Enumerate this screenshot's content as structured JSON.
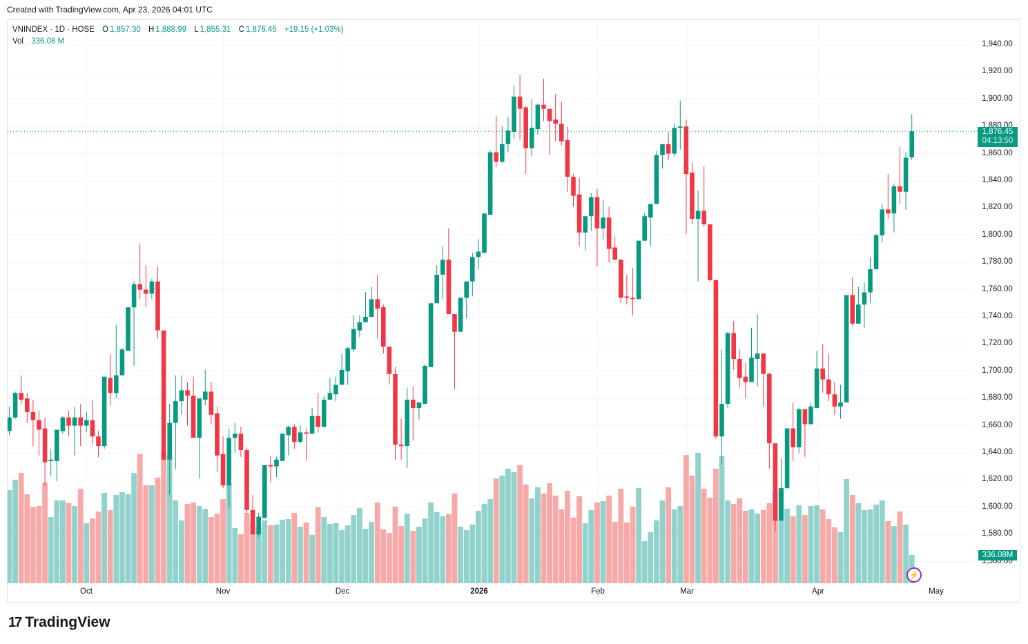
{
  "created_text": "Created with TradingView.com, Apr 23, 2026 04:01 UTC",
  "legend": {
    "symbol": "VNINDEX · 1D · HOSE",
    "o_label": "O",
    "o": "1,857.30",
    "h_label": "H",
    "h": "1,888.99",
    "l_label": "L",
    "l": "1,855.31",
    "c_label": "C",
    "c": "1,876.45",
    "change": "+19.15 (+1.03%)",
    "vol_label": "Vol",
    "vol": "336.08 M"
  },
  "price_tag": {
    "price": "1,876.45",
    "countdown": "04:13:50"
  },
  "volume_tag": "336.08M",
  "logo_text": "TradingView",
  "colors": {
    "up": "#089981",
    "down": "#f23645",
    "vol_up": "#92d2cc",
    "vol_down": "#f7a9a7",
    "grid": "#f0f3fa"
  },
  "chart_data": {
    "type": "candlestick",
    "title": "VNINDEX · 1D · HOSE",
    "ylabel": "Price",
    "ylim": [
      1555,
      1950
    ],
    "grid": true,
    "price_ticks": [
      "1,560.00",
      "1,580.00",
      "1,600.00",
      "1,620.00",
      "1,640.00",
      "1,660.00",
      "1,680.00",
      "1,700.00",
      "1,720.00",
      "1,740.00",
      "1,760.00",
      "1,780.00",
      "1,800.00",
      "1,820.00",
      "1,840.00",
      "1,860.00",
      "1,880.00",
      "1,900.00",
      "1,920.00",
      "1,940.00"
    ],
    "time_ticks": [
      "Oct",
      "Nov",
      "Dec",
      "2026",
      "Feb",
      "Mar",
      "Apr",
      "May"
    ],
    "fields": [
      "open",
      "high",
      "low",
      "close",
      "volume_millions"
    ],
    "candles": [
      [
        1656,
        1674,
        1653,
        1666,
        1106
      ],
      [
        1666,
        1685,
        1665,
        1684,
        1229
      ],
      [
        1684,
        1697,
        1675,
        1679,
        1311
      ],
      [
        1680,
        1684,
        1662,
        1670,
        1057
      ],
      [
        1670,
        1679,
        1645,
        1664,
        902
      ],
      [
        1664,
        1671,
        1638,
        1657,
        918
      ],
      [
        1658,
        1666,
        1616,
        1633,
        1197
      ],
      [
        1634,
        1643,
        1623,
        1635,
        787
      ],
      [
        1634,
        1657,
        1619,
        1657,
        984
      ],
      [
        1656,
        1667,
        1654,
        1666,
        984
      ],
      [
        1666,
        1671,
        1652,
        1660,
        951
      ],
      [
        1660,
        1674,
        1638,
        1666,
        918
      ],
      [
        1666,
        1676,
        1645,
        1660,
        1123
      ],
      [
        1660,
        1670,
        1655,
        1664,
        713
      ],
      [
        1664,
        1679,
        1646,
        1652,
        770
      ],
      [
        1652,
        1656,
        1637,
        1645,
        852
      ],
      [
        1645,
        1696,
        1643,
        1696,
        1074
      ],
      [
        1695,
        1713,
        1675,
        1684,
        869
      ],
      [
        1684,
        1734,
        1680,
        1697,
        1049
      ],
      [
        1697,
        1717,
        1697,
        1716,
        1082
      ],
      [
        1715,
        1747,
        1715,
        1747,
        1057
      ],
      [
        1747,
        1766,
        1704,
        1764,
        1311
      ],
      [
        1764,
        1794,
        1753,
        1760,
        1533
      ],
      [
        1760,
        1778,
        1747,
        1757,
        1164
      ],
      [
        1757,
        1768,
        1753,
        1766,
        1164
      ],
      [
        1766,
        1777,
        1724,
        1730,
        1254
      ],
      [
        1730,
        1730,
        1634,
        1635,
        1557
      ],
      [
        1635,
        1676,
        1609,
        1662,
        1516
      ],
      [
        1662,
        1697,
        1628,
        1678,
        984
      ],
      [
        1678,
        1697,
        1668,
        1686,
        746
      ],
      [
        1686,
        1692,
        1660,
        1682,
        943
      ],
      [
        1682,
        1696,
        1651,
        1651,
        959
      ],
      [
        1651,
        1680,
        1621,
        1680,
        918
      ],
      [
        1679,
        1701,
        1675,
        1685,
        885
      ],
      [
        1685,
        1692,
        1661,
        1668,
        787
      ],
      [
        1669,
        1674,
        1626,
        1638,
        828
      ],
      [
        1639,
        1652,
        1614,
        1616,
        1000
      ],
      [
        1616,
        1658,
        1600,
        1651,
        1188
      ],
      [
        1651,
        1662,
        1640,
        1654,
        656
      ],
      [
        1654,
        1659,
        1637,
        1642,
        582
      ],
      [
        1642,
        1644,
        1595,
        1598,
        836
      ],
      [
        1598,
        1609,
        1580,
        1580,
        729
      ],
      [
        1580,
        1596,
        1578,
        1593,
        656
      ],
      [
        1592,
        1631,
        1592,
        1631,
        746
      ],
      [
        1631,
        1638,
        1618,
        1630,
        688
      ],
      [
        1630,
        1637,
        1622,
        1635,
        697
      ],
      [
        1634,
        1654,
        1634,
        1654,
        754
      ],
      [
        1653,
        1660,
        1638,
        1659,
        762
      ],
      [
        1659,
        1661,
        1643,
        1648,
        836
      ],
      [
        1648,
        1660,
        1647,
        1655,
        672
      ],
      [
        1655,
        1658,
        1634,
        1654,
        721
      ],
      [
        1654,
        1673,
        1654,
        1667,
        574
      ],
      [
        1667,
        1684,
        1655,
        1659,
        902
      ],
      [
        1659,
        1682,
        1659,
        1679,
        787
      ],
      [
        1679,
        1695,
        1679,
        1684,
        705
      ],
      [
        1683,
        1696,
        1678,
        1690,
        713
      ],
      [
        1690,
        1713,
        1690,
        1701,
        631
      ],
      [
        1700,
        1718,
        1690,
        1717,
        688
      ],
      [
        1716,
        1741,
        1714,
        1731,
        811
      ],
      [
        1730,
        1741,
        1725,
        1736,
        893
      ],
      [
        1736,
        1758,
        1736,
        1740,
        647
      ],
      [
        1740,
        1762,
        1740,
        1753,
        729
      ],
      [
        1753,
        1771,
        1724,
        1746,
        959
      ],
      [
        1747,
        1749,
        1713,
        1718,
        639
      ],
      [
        1718,
        1718,
        1690,
        1698,
        598
      ],
      [
        1698,
        1703,
        1635,
        1646,
        910
      ],
      [
        1646,
        1665,
        1635,
        1645,
        680
      ],
      [
        1645,
        1688,
        1629,
        1679,
        828
      ],
      [
        1679,
        1689,
        1649,
        1673,
        623
      ],
      [
        1673,
        1677,
        1664,
        1677,
        672
      ],
      [
        1676,
        1705,
        1676,
        1704,
        770
      ],
      [
        1703,
        1750,
        1703,
        1750,
        959
      ],
      [
        1750,
        1778,
        1750,
        1771,
        844
      ],
      [
        1771,
        1792,
        1753,
        1782,
        795
      ],
      [
        1782,
        1805,
        1742,
        1742,
        820
      ],
      [
        1742,
        1742,
        1687,
        1729,
        1065
      ],
      [
        1729,
        1754,
        1729,
        1754,
        672
      ],
      [
        1754,
        1766,
        1739,
        1766,
        631
      ],
      [
        1766,
        1787,
        1755,
        1784,
        697
      ],
      [
        1784,
        1797,
        1775,
        1788,
        861
      ],
      [
        1787,
        1816,
        1787,
        1816,
        943
      ],
      [
        1815,
        1862,
        1815,
        1861,
        1000
      ],
      [
        1861,
        1888,
        1850,
        1854,
        1246
      ],
      [
        1854,
        1880,
        1853,
        1867,
        1279
      ],
      [
        1867,
        1887,
        1861,
        1877,
        1361
      ],
      [
        1876,
        1910,
        1871,
        1902,
        1320
      ],
      [
        1902,
        1918,
        1870,
        1893,
        1402
      ],
      [
        1894,
        1895,
        1845,
        1864,
        1172
      ],
      [
        1864,
        1900,
        1858,
        1879,
        1008
      ],
      [
        1878,
        1897,
        1874,
        1896,
        1139
      ],
      [
        1896,
        1915,
        1884,
        1893,
        1065
      ],
      [
        1893,
        1893,
        1859,
        1884,
        1188
      ],
      [
        1885,
        1904,
        1869,
        1882,
        1041
      ],
      [
        1882,
        1898,
        1866,
        1869,
        877
      ],
      [
        1870,
        1880,
        1832,
        1843,
        1098
      ],
      [
        1843,
        1845,
        1821,
        1829,
        779
      ],
      [
        1830,
        1842,
        1792,
        1802,
        1033
      ],
      [
        1802,
        1814,
        1789,
        1814,
        713
      ],
      [
        1814,
        1831,
        1803,
        1828,
        869
      ],
      [
        1828,
        1834,
        1777,
        1805,
        959
      ],
      [
        1805,
        1826,
        1797,
        1813,
        975
      ],
      [
        1813,
        1821,
        1780,
        1790,
        1041
      ],
      [
        1791,
        1799,
        1782,
        1782,
        729
      ],
      [
        1782,
        1782,
        1750,
        1754,
        1123
      ],
      [
        1755,
        1771,
        1749,
        1754,
        721
      ],
      [
        1754,
        1776,
        1741,
        1753,
        910
      ],
      [
        1753,
        1796,
        1753,
        1796,
        1131
      ],
      [
        1796,
        1816,
        1796,
        1814,
        500
      ],
      [
        1813,
        1823,
        1792,
        1823,
        607
      ],
      [
        1823,
        1862,
        1823,
        1859,
        746
      ],
      [
        1859,
        1867,
        1849,
        1867,
        984
      ],
      [
        1867,
        1876,
        1855,
        1860,
        1139
      ],
      [
        1860,
        1882,
        1858,
        1879,
        877
      ],
      [
        1879,
        1899,
        1863,
        1880,
        918
      ],
      [
        1880,
        1885,
        1801,
        1845,
        1524
      ],
      [
        1846,
        1854,
        1808,
        1812,
        1279
      ],
      [
        1812,
        1833,
        1766,
        1818,
        1549
      ],
      [
        1818,
        1851,
        1806,
        1808,
        1123
      ],
      [
        1808,
        1808,
        1766,
        1767,
        1016
      ],
      [
        1767,
        1767,
        1650,
        1652,
        1361
      ],
      [
        1652,
        1716,
        1631,
        1676,
        1508
      ],
      [
        1676,
        1729,
        1673,
        1728,
        984
      ],
      [
        1728,
        1737,
        1701,
        1709,
        943
      ],
      [
        1709,
        1716,
        1688,
        1695,
        1008
      ],
      [
        1696,
        1706,
        1680,
        1692,
        861
      ],
      [
        1692,
        1732,
        1692,
        1710,
        877
      ],
      [
        1709,
        1742,
        1689,
        1713,
        828
      ],
      [
        1713,
        1713,
        1674,
        1698,
        869
      ],
      [
        1698,
        1699,
        1628,
        1647,
        951
      ],
      [
        1647,
        1647,
        1582,
        1590,
        1082
      ],
      [
        1590,
        1636,
        1590,
        1614,
        1131
      ],
      [
        1614,
        1658,
        1614,
        1658,
        885
      ],
      [
        1658,
        1677,
        1634,
        1644,
        795
      ],
      [
        1644,
        1673,
        1640,
        1672,
        926
      ],
      [
        1672,
        1672,
        1637,
        1661,
        811
      ],
      [
        1661,
        1677,
        1661,
        1674,
        918
      ],
      [
        1673,
        1715,
        1673,
        1702,
        926
      ],
      [
        1702,
        1720,
        1684,
        1694,
        877
      ],
      [
        1694,
        1713,
        1678,
        1683,
        762
      ],
      [
        1683,
        1692,
        1668,
        1674,
        664
      ],
      [
        1674,
        1690,
        1665,
        1677,
        607
      ],
      [
        1677,
        1756,
        1677,
        1756,
        1238
      ],
      [
        1756,
        1769,
        1733,
        1735,
        1049
      ],
      [
        1735,
        1762,
        1735,
        1749,
        951
      ],
      [
        1749,
        1765,
        1732,
        1758,
        869
      ],
      [
        1758,
        1784,
        1750,
        1775,
        877
      ],
      [
        1775,
        1801,
        1775,
        1800,
        934
      ],
      [
        1800,
        1823,
        1795,
        1819,
        984
      ],
      [
        1819,
        1845,
        1812,
        1816,
        738
      ],
      [
        1816,
        1838,
        1802,
        1836,
        680
      ],
      [
        1836,
        1865,
        1823,
        1832,
        852
      ],
      [
        1832,
        1861,
        1819,
        1857,
        697
      ],
      [
        1857.3,
        1888.99,
        1855.31,
        1876.45,
        336.08
      ]
    ],
    "last_price": 1876.45
  }
}
